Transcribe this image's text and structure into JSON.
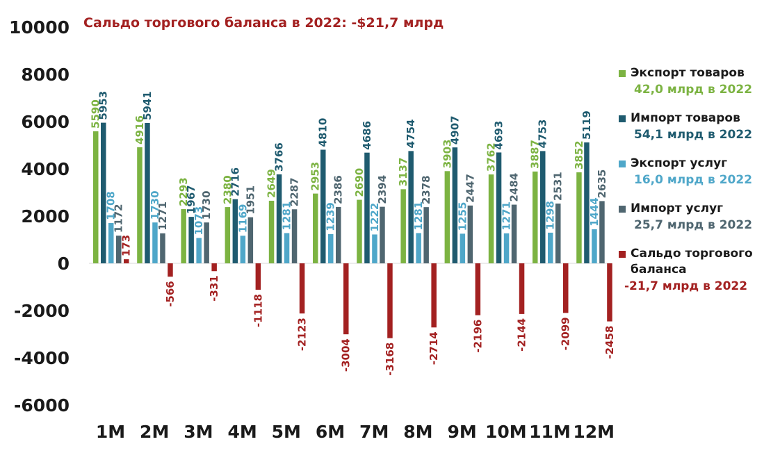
{
  "colors": {
    "export_goods": "#7cb342",
    "import_goods": "#1f5b6f",
    "export_services": "#4fa7c9",
    "import_services": "#4f6670",
    "trade_balance": "#a32121",
    "text": "#1a1a1a"
  },
  "title": "Сальдо торгового баланса в 2022: -$21,7 млрд",
  "legend": [
    {
      "name": "Экспорт товаров",
      "total": "42,0 млрд в 2022",
      "color": "#7cb342"
    },
    {
      "name": "Импорт товаров",
      "total": "54,1 млрд в 2022",
      "color": "#1f5b6f"
    },
    {
      "name": "Экспорт услуг",
      "total": "16,0 млрд в 2022",
      "color": "#4fa7c9"
    },
    {
      "name": "Импорт услуг",
      "total": "25,7 млрд в 2022",
      "color": "#4f6670"
    },
    {
      "name": "Сальдо торгового баланса",
      "total": "-21,7 млрд в 2022",
      "color": "#a32121"
    }
  ],
  "chart_data": {
    "type": "bar",
    "title": "Сальдо торгового баланса в 2022: -$21,7 млрд",
    "categories": [
      "1M",
      "2M",
      "3M",
      "4M",
      "5M",
      "6M",
      "7M",
      "8M",
      "9M",
      "10M",
      "11M",
      "12M"
    ],
    "series": [
      {
        "name": "Экспорт товаров",
        "values": [
          5590,
          4916,
          2293,
          2380,
          2649,
          2953,
          2690,
          3137,
          3903,
          3762,
          3887,
          3852
        ]
      },
      {
        "name": "Импорт товаров",
        "values": [
          5953,
          5941,
          1967,
          2716,
          3766,
          4810,
          4686,
          4754,
          4907,
          4693,
          4753,
          5119
        ]
      },
      {
        "name": "Экспорт услуг",
        "values": [
          1708,
          1730,
          1073,
          1169,
          1281,
          1239,
          1222,
          1281,
          1255,
          1271,
          1298,
          1444
        ]
      },
      {
        "name": "Импорт услуг",
        "values": [
          1172,
          1271,
          1730,
          1951,
          2287,
          2386,
          2394,
          2378,
          2447,
          2484,
          2531,
          2635
        ]
      },
      {
        "name": "Сальдо торгового баланса",
        "values": [
          173,
          -566,
          -331,
          -1118,
          -2123,
          -3004,
          -3168,
          -2714,
          -2196,
          -2144,
          -2099,
          -2458
        ]
      }
    ],
    "yticks": [
      10000,
      8000,
      6000,
      4000,
      2000,
      0,
      -2000,
      -4000,
      -6000
    ],
    "ylim": [
      -6000,
      10000
    ],
    "grid": false,
    "legend_position": "right"
  }
}
